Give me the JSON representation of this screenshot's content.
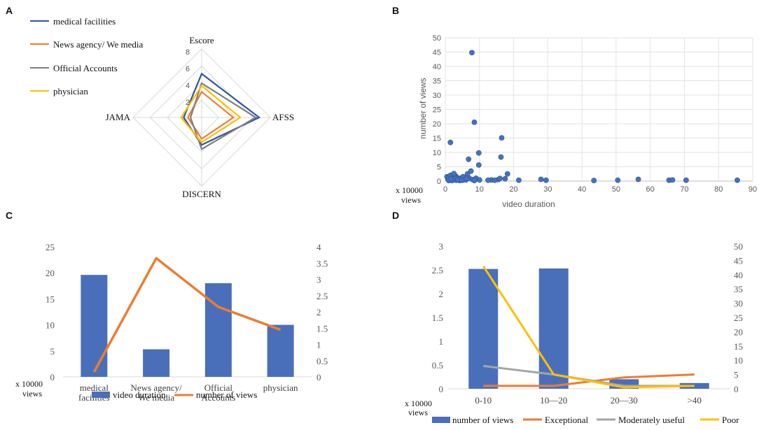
{
  "panel_labels": [
    "A",
    "B",
    "C",
    "D"
  ],
  "chart_data": [
    {
      "panel": "A",
      "type": "radar",
      "axes": [
        "Escore",
        "AFSS",
        "DISCERN",
        "JAMA"
      ],
      "rmax": 8,
      "ticks": [
        "8",
        "6",
        "4",
        "2"
      ],
      "series": [
        {
          "name": "medical facilities",
          "color": "#2f55a4",
          "values": [
            5.1,
            6.7,
            3.2,
            2.1
          ]
        },
        {
          "name": "News agency/ We media",
          "color": "#ed7d31",
          "values": [
            3.0,
            3.7,
            2.5,
            1.6
          ]
        },
        {
          "name": "Official Accounts",
          "color": "#7f7f7f",
          "values": [
            4.0,
            6.3,
            3.7,
            1.3
          ]
        },
        {
          "name": "physician",
          "color": "#ffc000",
          "values": [
            3.7,
            4.5,
            2.9,
            2.4
          ]
        }
      ]
    },
    {
      "panel": "B",
      "type": "scatter",
      "xlabel": "video duration",
      "ylabel": "number of views",
      "unit_label": [
        "x 10000",
        "views"
      ],
      "xlim": [
        0,
        90
      ],
      "ylim": [
        0,
        50
      ],
      "xticks": [
        "0",
        "10",
        "20",
        "30",
        "40",
        "50",
        "60",
        "70",
        "80",
        "90"
      ],
      "yticks": [
        "0",
        "5",
        "10",
        "15",
        "20",
        "25",
        "30",
        "35",
        "40",
        "45",
        "50"
      ],
      "color": "#4472c4",
      "points": [
        [
          0.5,
          1.5
        ],
        [
          0.8,
          0.6
        ],
        [
          1.0,
          1.2
        ],
        [
          1.2,
          0.3
        ],
        [
          1.5,
          2.0
        ],
        [
          1.8,
          0.8
        ],
        [
          2.0,
          1.5
        ],
        [
          2.2,
          0.4
        ],
        [
          2.5,
          1.0
        ],
        [
          2.8,
          0.6
        ],
        [
          3.0,
          1.8
        ],
        [
          3.2,
          0.3
        ],
        [
          3.5,
          1.2
        ],
        [
          3.8,
          0.7
        ],
        [
          4.0,
          0.5
        ],
        [
          4.5,
          1.0
        ],
        [
          5.0,
          0.3
        ],
        [
          5.5,
          0.8
        ],
        [
          6.0,
          0.4
        ],
        [
          6.5,
          2.5
        ],
        [
          7.0,
          1.0
        ],
        [
          7.5,
          3.5
        ],
        [
          8.0,
          0.5
        ],
        [
          9.0,
          1.0
        ],
        [
          10.0,
          0.4
        ],
        [
          1.0,
          0.2
        ],
        [
          2.0,
          0.2
        ],
        [
          3.0,
          0.9
        ],
        [
          4.2,
          0.2
        ],
        [
          5.2,
          1.5
        ],
        [
          6.2,
          0.9
        ],
        [
          8.5,
          0.2
        ],
        [
          2.5,
          2.6
        ],
        [
          3.6,
          0.5
        ],
        [
          1.6,
          0.8
        ],
        [
          4.8,
          0.4
        ],
        [
          7.8,
          44.8
        ],
        [
          8.5,
          20.5
        ],
        [
          1.5,
          13.5
        ],
        [
          6.8,
          7.6
        ],
        [
          9.8,
          9.8
        ],
        [
          9.8,
          5.6
        ],
        [
          16.5,
          15.1
        ],
        [
          16.3,
          8.4
        ],
        [
          18.2,
          2.5
        ],
        [
          17.5,
          0.8
        ],
        [
          13.5,
          0.4
        ],
        [
          15.5,
          0.5
        ],
        [
          12.5,
          0.3
        ],
        [
          16.0,
          0.9
        ],
        [
          14.5,
          0.3
        ],
        [
          21.5,
          0.3
        ],
        [
          28.0,
          0.6
        ],
        [
          29.5,
          0.3
        ],
        [
          43.5,
          0.2
        ],
        [
          50.5,
          0.3
        ],
        [
          56.5,
          0.6
        ],
        [
          65.5,
          0.3
        ],
        [
          66.5,
          0.4
        ],
        [
          70.5,
          0.3
        ],
        [
          85.5,
          0.3
        ]
      ]
    },
    {
      "panel": "C",
      "type": "bar+line",
      "categories": [
        [
          "medical",
          "facilities"
        ],
        [
          "News agency/",
          "We media"
        ],
        [
          "Official",
          "Accounts"
        ],
        [
          "physician"
        ]
      ],
      "unit_label": [
        "x 10000",
        "views"
      ],
      "bars": {
        "name": "video duration",
        "color": "#4a6fba",
        "axis": "left",
        "values": [
          19.6,
          5.3,
          18.0,
          10.0
        ]
      },
      "line": {
        "name": "number of views",
        "color": "#ed7d31",
        "axis": "right",
        "values": [
          0.15,
          3.65,
          2.15,
          1.45
        ]
      },
      "ylim_left": [
        0,
        25
      ],
      "ylim_right": [
        0,
        4
      ],
      "left_ticks": [
        "0",
        "5",
        "10",
        "15",
        "20",
        "25"
      ],
      "right_ticks": [
        "0",
        "0.5",
        "1",
        "1.5",
        "2",
        "2.5",
        "3",
        "3.5",
        "4"
      ]
    },
    {
      "panel": "D",
      "type": "bar+line",
      "categories": [
        "0-10",
        "10—20",
        "20—30",
        ">40"
      ],
      "unit_label": [
        "x 10000",
        "views"
      ],
      "bars": {
        "name": "number of views",
        "color": "#4a6fba",
        "axis": "left",
        "values": [
          2.52,
          2.53,
          0.2,
          0.12
        ]
      },
      "lines": [
        {
          "name": "Exceptional",
          "color": "#ed7d31",
          "axis": "right",
          "values": [
            1,
            1,
            4,
            5
          ]
        },
        {
          "name": "Moderately useful",
          "color": "#a5a5a5",
          "axis": "right",
          "values": [
            8,
            5,
            1,
            1
          ]
        },
        {
          "name": "Poor",
          "color": "#ffc000",
          "axis": "right",
          "values": [
            43,
            5,
            0.5,
            1
          ]
        }
      ],
      "ylim_left": [
        0,
        3
      ],
      "ylim_right": [
        0,
        50
      ],
      "left_ticks": [
        "0",
        "0.5",
        "1",
        "1.5",
        "2",
        "2.5",
        "3"
      ],
      "right_ticks": [
        "0",
        "5",
        "10",
        "15",
        "20",
        "25",
        "30",
        "35",
        "40",
        "45",
        "50"
      ]
    }
  ]
}
